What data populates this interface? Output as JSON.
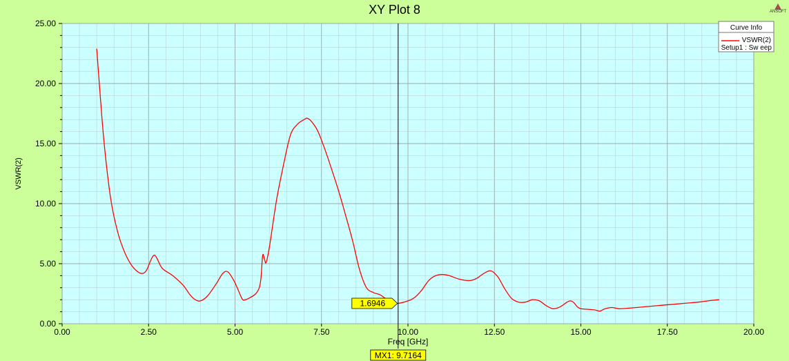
{
  "colors": {
    "background": "#ccff99",
    "plot_area": "#ccffff",
    "grid": "#b8c8cc",
    "curve": "#ff0000",
    "marker": "#ffff00"
  },
  "logo_text": "ANSOFT",
  "legend": {
    "title": "Curve Info",
    "series_label": "VSWR(2)",
    "series_sub": "Setup1 : Sw eep"
  },
  "marker": {
    "value_label": "1.6946",
    "x_label": "MX1: 9.7164",
    "x": 9.7164,
    "y": 1.6946
  },
  "chart_data": {
    "type": "line",
    "title": "XY Plot 8",
    "xlabel": "Freq [GHz]",
    "ylabel": "VSWR(2)",
    "xlim": [
      0,
      20
    ],
    "ylim": [
      0,
      25
    ],
    "xticks": [
      "0.00",
      "2.50",
      "5.00",
      "7.50",
      "10.00",
      "12.50",
      "15.00",
      "17.50",
      "20.00"
    ],
    "yticks": [
      "0.00",
      "5.00",
      "10.00",
      "15.00",
      "20.00",
      "25.00"
    ],
    "grid": true,
    "legend_position": "top-right",
    "series": [
      {
        "name": "VSWR(2)",
        "x": [
          1.0,
          1.2,
          1.4,
          1.6,
          1.8,
          2.0,
          2.2,
          2.35,
          2.45,
          2.55,
          2.62,
          2.68,
          2.75,
          2.9,
          3.2,
          3.5,
          3.7,
          3.85,
          4.0,
          4.2,
          4.45,
          4.65,
          4.8,
          5.0,
          5.2,
          5.3,
          5.45,
          5.6,
          5.7,
          5.75,
          5.8,
          5.85,
          5.9,
          6.0,
          6.2,
          6.4,
          6.6,
          6.8,
          7.0,
          7.1,
          7.25,
          7.4,
          7.6,
          7.8,
          8.0,
          8.2,
          8.4,
          8.6,
          8.8,
          9.0,
          9.2,
          9.4,
          9.6,
          9.7164,
          10.0,
          10.2,
          10.4,
          10.6,
          10.8,
          11.0,
          11.2,
          11.5,
          11.8,
          12.0,
          12.2,
          12.4,
          12.6,
          12.8,
          13.0,
          13.2,
          13.4,
          13.6,
          13.8,
          14.0,
          14.2,
          14.4,
          14.6,
          14.7,
          14.8,
          14.9,
          15.0,
          15.2,
          15.4,
          15.55,
          15.7,
          15.9,
          16.1,
          16.4,
          16.8,
          17.2,
          17.6,
          18.0,
          18.4,
          18.8,
          19.0
        ],
        "values": [
          22.9,
          15.5,
          10.5,
          7.7,
          6.0,
          4.9,
          4.3,
          4.2,
          4.5,
          5.2,
          5.6,
          5.7,
          5.4,
          4.6,
          4.0,
          3.2,
          2.4,
          2.0,
          1.9,
          2.3,
          3.3,
          4.2,
          4.3,
          3.4,
          2.1,
          2.0,
          2.2,
          2.5,
          3.0,
          3.8,
          5.7,
          5.4,
          5.1,
          6.5,
          10.3,
          13.2,
          15.7,
          16.6,
          17.0,
          17.1,
          16.7,
          16.0,
          14.5,
          12.8,
          11.0,
          9.0,
          6.9,
          4.5,
          3.0,
          2.6,
          2.4,
          2.0,
          1.75,
          1.6946,
          1.9,
          2.2,
          2.8,
          3.6,
          4.0,
          4.1,
          4.0,
          3.7,
          3.6,
          3.8,
          4.2,
          4.4,
          3.9,
          2.9,
          2.1,
          1.8,
          1.8,
          2.0,
          1.9,
          1.5,
          1.25,
          1.4,
          1.8,
          1.9,
          1.75,
          1.4,
          1.25,
          1.2,
          1.15,
          1.05,
          1.25,
          1.35,
          1.25,
          1.3,
          1.4,
          1.5,
          1.6,
          1.7,
          1.8,
          1.95,
          2.0
        ]
      }
    ]
  }
}
